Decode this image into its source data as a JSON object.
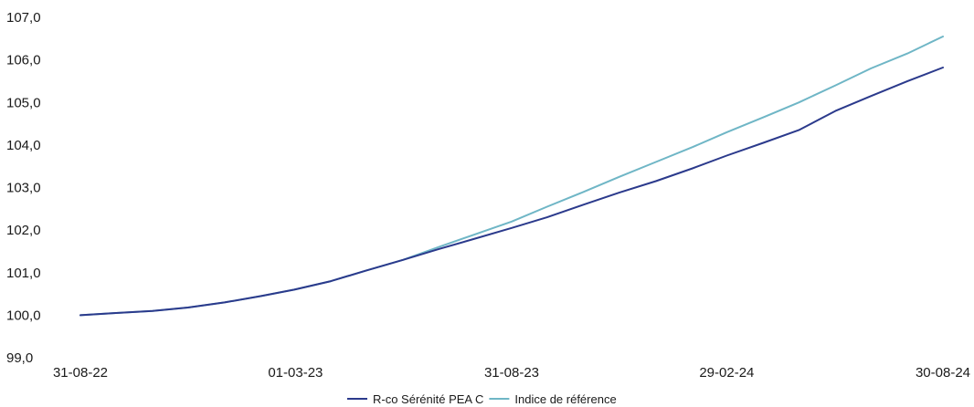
{
  "chart_data": {
    "type": "line",
    "title": "",
    "xlabel": "",
    "ylabel": "",
    "ylim": [
      99.0,
      107.0
    ],
    "yticks": [
      "99,0",
      "100,0",
      "101,0",
      "102,0",
      "103,0",
      "104,0",
      "105,0",
      "106,0",
      "107,0"
    ],
    "xticks": [
      "31-08-22",
      "01-03-23",
      "31-08-23",
      "29-02-24",
      "30-08-24"
    ],
    "grid": false,
    "legend_position": "bottom-center",
    "x": [
      "31-08-22",
      "30-09-22",
      "31-10-22",
      "30-11-22",
      "31-12-22",
      "31-01-23",
      "28-02-23",
      "31-03-23",
      "30-04-23",
      "31-05-23",
      "30-06-23",
      "31-07-23",
      "31-08-23",
      "30-09-23",
      "31-10-23",
      "30-11-23",
      "31-12-23",
      "31-01-24",
      "29-02-24",
      "31-03-24",
      "30-04-24",
      "31-05-24",
      "30-06-24",
      "31-07-24",
      "30-08-24"
    ],
    "series": [
      {
        "name": "R-co Sérénité PEA C",
        "color": "#2b3a8c",
        "values": [
          100.0,
          100.05,
          100.1,
          100.18,
          100.3,
          100.45,
          100.6,
          100.8,
          101.05,
          101.3,
          101.55,
          101.8,
          102.05,
          102.3,
          102.6,
          102.88,
          103.15,
          103.45,
          103.75,
          104.05,
          104.35,
          104.8,
          105.15,
          105.5,
          105.82
        ]
      },
      {
        "name": "Indice de référence",
        "color": "#6fb6c6",
        "values": [
          100.0,
          100.05,
          100.1,
          100.18,
          100.3,
          100.45,
          100.6,
          100.8,
          101.05,
          101.3,
          101.6,
          101.9,
          102.2,
          102.55,
          102.9,
          103.25,
          103.6,
          103.95,
          104.3,
          104.65,
          105.0,
          105.4,
          105.8,
          106.15,
          106.55
        ]
      }
    ]
  }
}
